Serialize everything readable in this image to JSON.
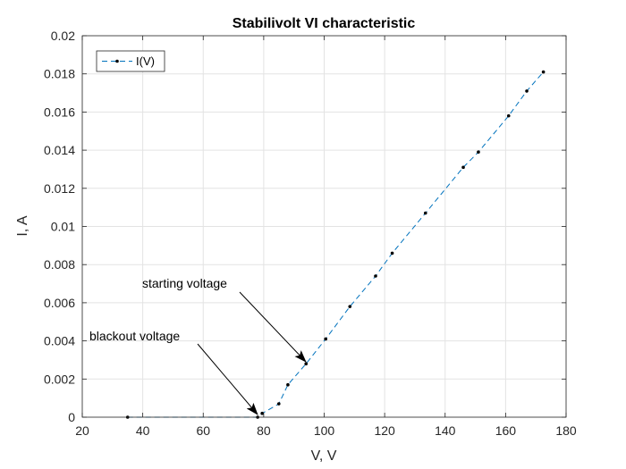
{
  "chart_data": {
    "type": "line",
    "title": "Stabilivolt VI characteristic",
    "xlabel": "V, V",
    "ylabel": "I, A",
    "xlim": [
      20,
      180
    ],
    "ylim": [
      0,
      0.02
    ],
    "xticks": [
      "20",
      "40",
      "60",
      "80",
      "100",
      "120",
      "140",
      "160",
      "180"
    ],
    "yticks": [
      "0",
      "0.002",
      "0.004",
      "0.006",
      "0.008",
      "0.01",
      "0.012",
      "0.014",
      "0.016",
      "0.018",
      "0.02"
    ],
    "grid": true,
    "legend": {
      "position": "top-left",
      "entries": [
        "I(V)"
      ]
    },
    "line_style": "dashed",
    "marker": "dot",
    "series": [
      {
        "name": "I(V)",
        "color": "#0072BD",
        "x": [
          35,
          78,
          79.5,
          85,
          88,
          94,
          100.5,
          108.5,
          117,
          122.5,
          133.5,
          146,
          151,
          161,
          167,
          172.5
        ],
        "y": [
          0,
          0,
          0.0002,
          0.0007,
          0.0017,
          0.0028,
          0.0041,
          0.0058,
          0.0074,
          0.0086,
          0.0107,
          0.0131,
          0.0139,
          0.0158,
          0.0171,
          0.0181
        ]
      }
    ],
    "annotations": [
      {
        "text": "starting voltage",
        "point": [
          94,
          0.0028
        ]
      },
      {
        "text": "blackout voltage",
        "point": [
          78,
          0
        ]
      }
    ]
  }
}
